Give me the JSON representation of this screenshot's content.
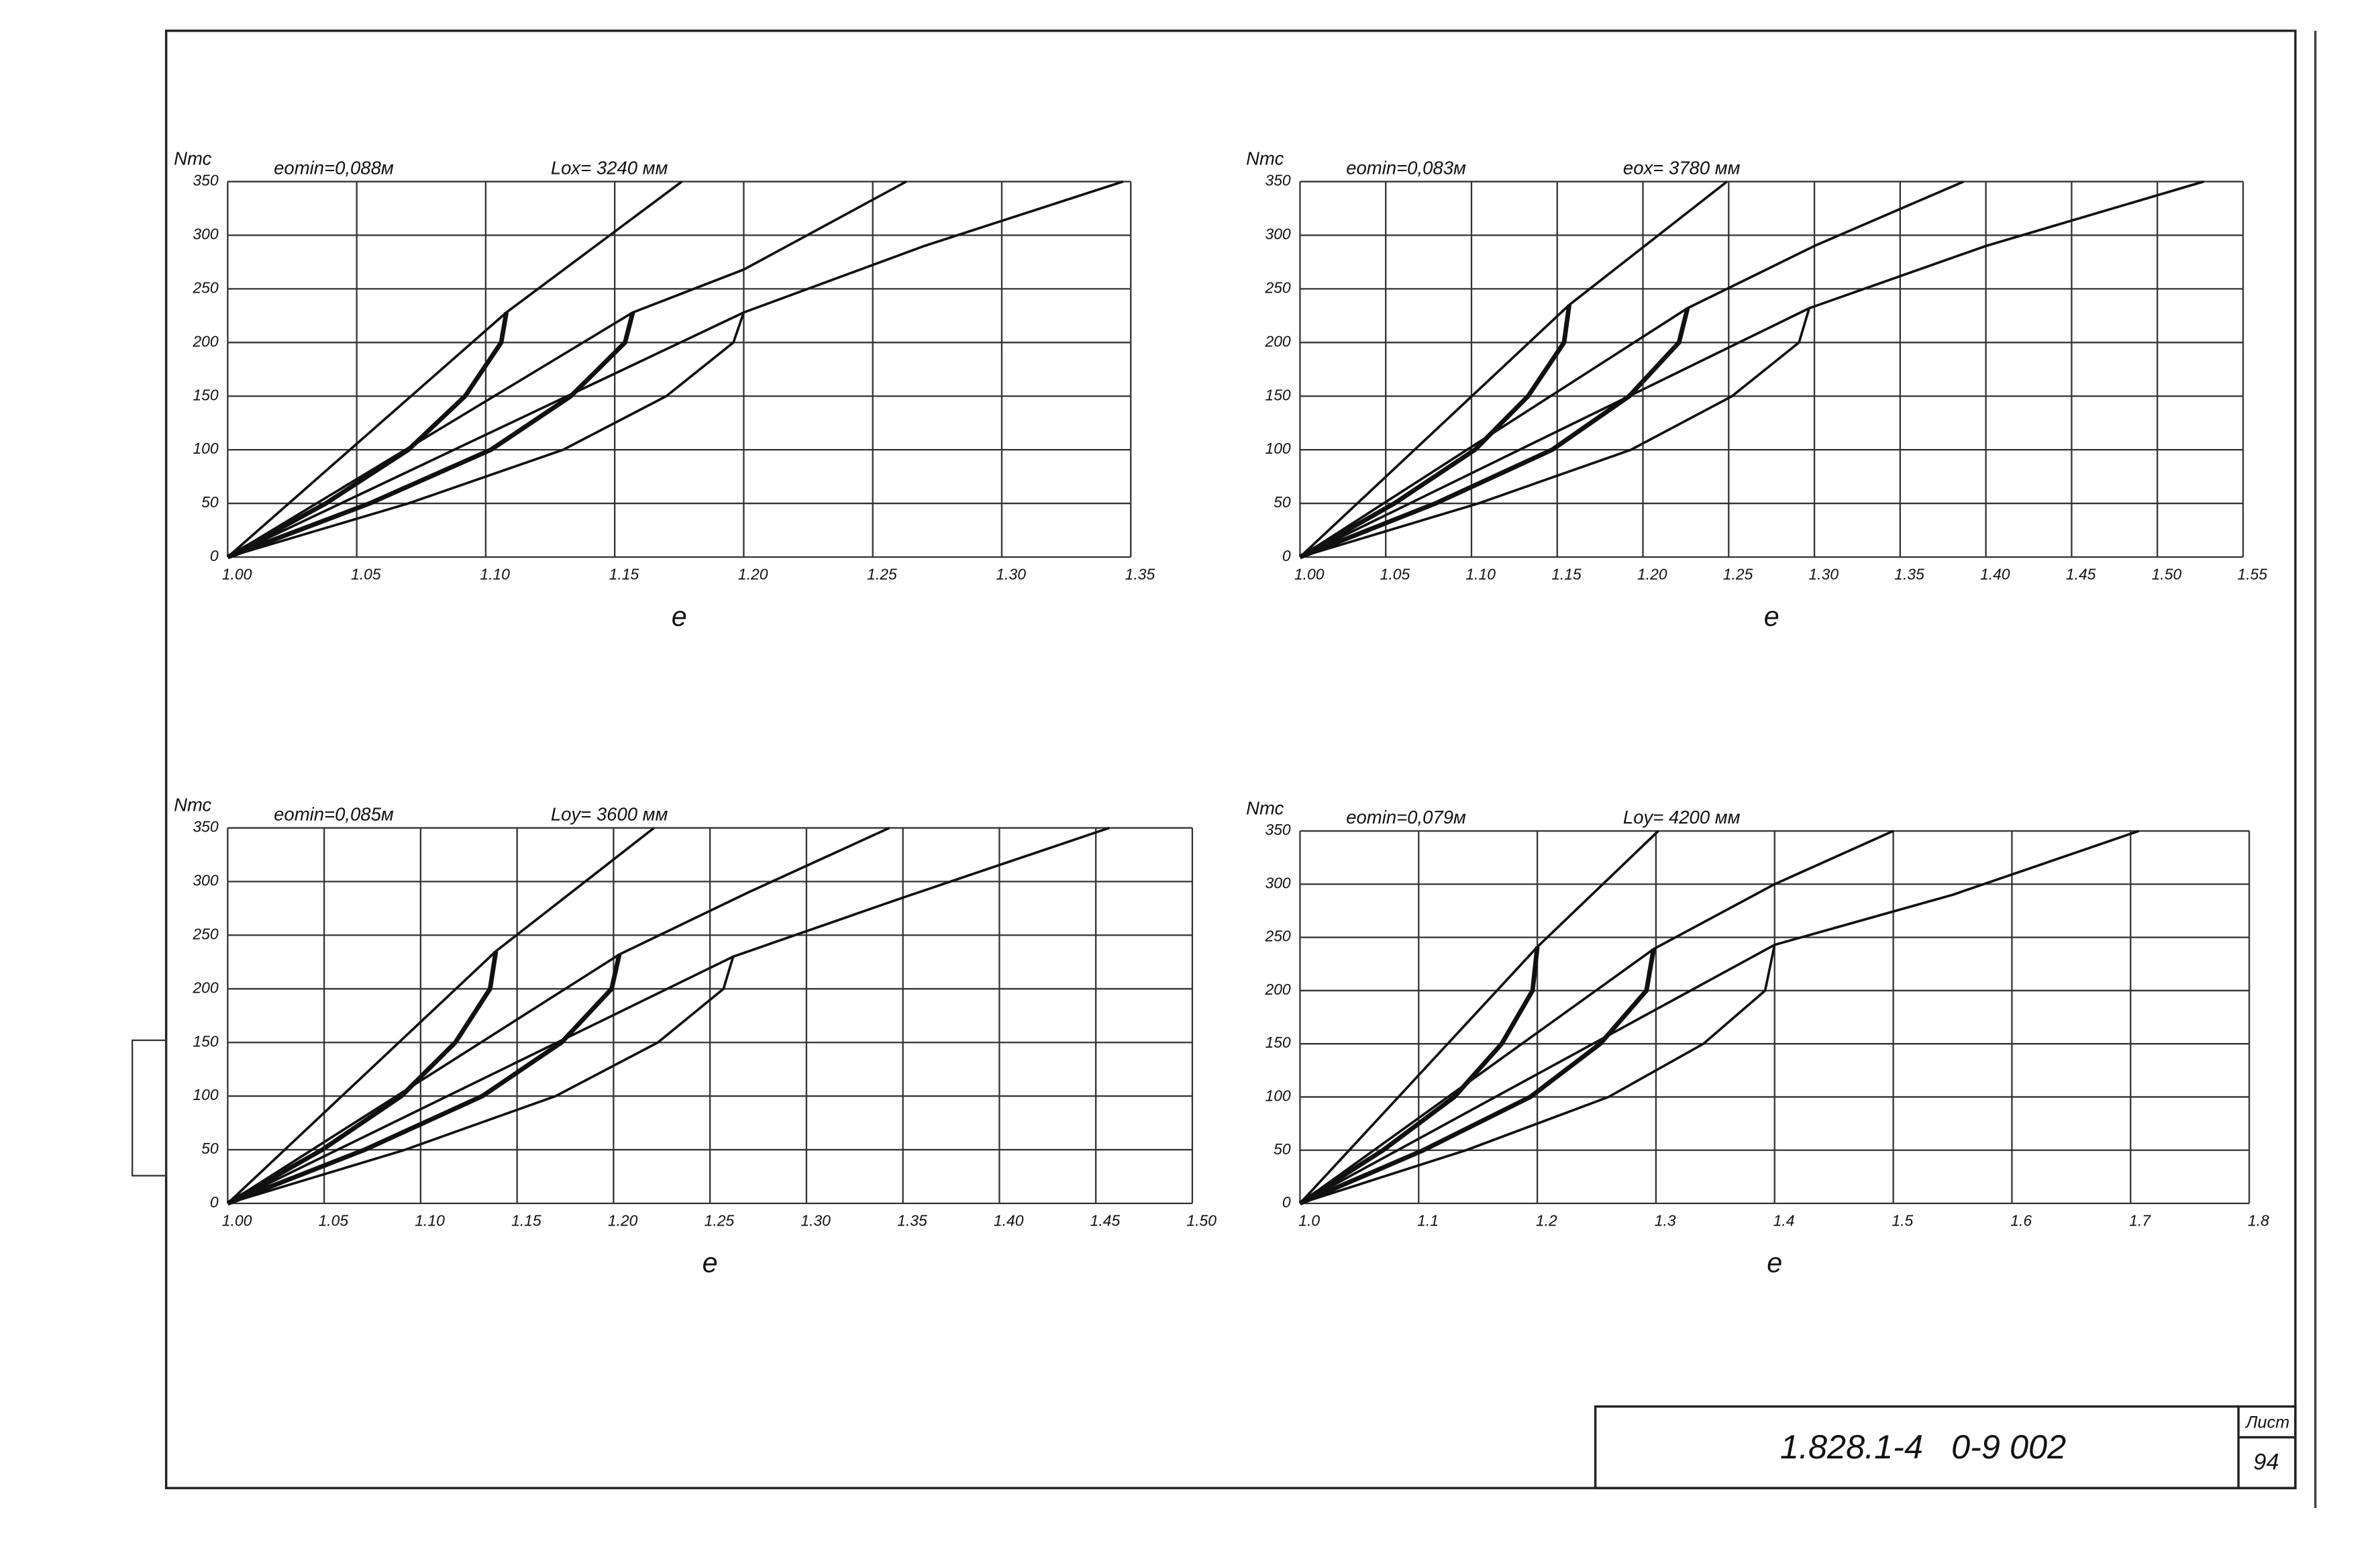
{
  "chart_data": [
    {
      "type": "line",
      "title": "eomin=0,088м",
      "subtitle": "Lox= 3240 мм",
      "y_label": "Nтс",
      "x_label": "e",
      "grid": true,
      "color": "#111",
      "xlim": [
        1,
        1.35
      ],
      "ylim": [
        0,
        350
      ],
      "xticks": [
        {
          "value": 1,
          "label": "1.00"
        },
        1.05,
        {
          "value": 1.1,
          "label": "1.10"
        },
        1.15,
        {
          "value": 1.2,
          "label": "1.20"
        },
        1.25,
        {
          "value": 1.3,
          "label": "1.30"
        },
        1.35
      ],
      "yticks": [
        0,
        50,
        100,
        150,
        200,
        250,
        300,
        350
      ],
      "series": [
        {
          "x": [
            1,
            1.108,
            1.176
          ],
          "values": [
            0,
            228,
            350
          ],
          "width": 1.6
        },
        {
          "x": [
            1,
            1.157,
            1.2,
            1.263
          ],
          "values": [
            0,
            228,
            268,
            350
          ],
          "width": 1.6
        },
        {
          "x": [
            1,
            1.2,
            1.27,
            1.347
          ],
          "values": [
            0,
            228,
            290,
            350
          ],
          "width": 1.6
        },
        {
          "x": [
            1.108,
            1.106,
            1.092,
            1.07,
            1.038,
            1
          ],
          "values": [
            228,
            200,
            150,
            100,
            50,
            0
          ],
          "width": 3
        },
        {
          "x": [
            1.157,
            1.154,
            1.133,
            1.102,
            1.055,
            1
          ],
          "values": [
            228,
            200,
            150,
            100,
            50,
            0
          ],
          "width": 3
        },
        {
          "x": [
            1.2,
            1.196,
            1.17,
            1.13,
            1.07,
            1
          ],
          "values": [
            228,
            200,
            150,
            100,
            50,
            0
          ],
          "width": 1.6
        }
      ]
    },
    {
      "type": "line",
      "title": "eomin=0,083м",
      "subtitle": "eox= 3780 мм",
      "y_label": "Nтс",
      "x_label": "e",
      "grid": true,
      "color": "#111",
      "xlim": [
        1,
        1.55
      ],
      "ylim": [
        0,
        350
      ],
      "xticks": [
        {
          "value": 1,
          "label": "1.00"
        },
        1.05,
        {
          "value": 1.1,
          "label": "1.10"
        },
        1.15,
        {
          "value": 1.2,
          "label": "1.20"
        },
        1.25,
        {
          "value": 1.3,
          "label": "1.30"
        },
        1.35,
        {
          "value": 1.4,
          "label": "1.40"
        },
        1.45,
        {
          "value": 1.5,
          "label": "1.50"
        },
        1.55
      ],
      "yticks": [
        0,
        50,
        100,
        150,
        200,
        250,
        300,
        350
      ],
      "series": [
        {
          "x": [
            1,
            1.157,
            1.249
          ],
          "values": [
            0,
            235,
            350
          ],
          "width": 1.6
        },
        {
          "x": [
            1,
            1.226,
            1.3,
            1.387
          ],
          "values": [
            0,
            232,
            290,
            350
          ],
          "width": 1.6
        },
        {
          "x": [
            1,
            1.297,
            1.4,
            1.527
          ],
          "values": [
            0,
            232,
            290,
            350
          ],
          "width": 1.6
        },
        {
          "x": [
            1.157,
            1.154,
            1.133,
            1.102,
            1.055,
            1
          ],
          "values": [
            235,
            200,
            150,
            100,
            50,
            0
          ],
          "width": 3
        },
        {
          "x": [
            1.226,
            1.221,
            1.192,
            1.147,
            1.079,
            1
          ],
          "values": [
            232,
            200,
            150,
            100,
            50,
            0
          ],
          "width": 3
        },
        {
          "x": [
            1.297,
            1.291,
            1.252,
            1.193,
            1.104,
            1
          ],
          "values": [
            232,
            200,
            150,
            100,
            50,
            0
          ],
          "width": 1.6
        }
      ]
    },
    {
      "type": "line",
      "title": "eomin=0,085м",
      "subtitle": "Loy= 3600 мм",
      "y_label": "Nтс",
      "x_label": "e",
      "grid": true,
      "color": "#111",
      "xlim": [
        1,
        1.5
      ],
      "ylim": [
        0,
        350
      ],
      "xticks": [
        {
          "value": 1,
          "label": "1.00"
        },
        1.05,
        {
          "value": 1.1,
          "label": "1.10"
        },
        1.15,
        {
          "value": 1.2,
          "label": "1.20"
        },
        1.25,
        {
          "value": 1.3,
          "label": "1.30"
        },
        1.35,
        {
          "value": 1.4,
          "label": "1.40"
        },
        1.45,
        {
          "value": 1.5,
          "label": "1.50"
        }
      ],
      "yticks": [
        0,
        50,
        100,
        150,
        200,
        250,
        300,
        350
      ],
      "series": [
        {
          "x": [
            1,
            1.139,
            1.221
          ],
          "values": [
            0,
            235,
            350
          ],
          "width": 1.6
        },
        {
          "x": [
            1,
            1.203,
            1.27,
            1.343
          ],
          "values": [
            0,
            232,
            290,
            350
          ],
          "width": 1.6
        },
        {
          "x": [
            1,
            1.262,
            1.35,
            1.457
          ],
          "values": [
            0,
            230,
            285,
            350
          ],
          "width": 1.6
        },
        {
          "x": [
            1.139,
            1.136,
            1.118,
            1.09,
            1.049,
            1
          ],
          "values": [
            235,
            200,
            150,
            100,
            50,
            0
          ],
          "width": 3
        },
        {
          "x": [
            1.203,
            1.199,
            1.173,
            1.132,
            1.071,
            1
          ],
          "values": [
            232,
            200,
            150,
            100,
            50,
            0
          ],
          "width": 3
        },
        {
          "x": [
            1.262,
            1.257,
            1.223,
            1.17,
            1.092,
            1
          ],
          "values": [
            230,
            200,
            150,
            100,
            50,
            0
          ],
          "width": 1.6
        }
      ]
    },
    {
      "type": "line",
      "title": "eomin=0,079м",
      "subtitle": "Loy= 4200 мм",
      "y_label": "Nтс",
      "x_label": "e",
      "grid": true,
      "color": "#111",
      "xlim": [
        1,
        1.8
      ],
      "ylim": [
        0,
        350
      ],
      "xticks": [
        {
          "value": 1,
          "label": "1.0"
        },
        1.1,
        1.2,
        1.3,
        1.4,
        1.5,
        1.6,
        1.7,
        1.8
      ],
      "yticks": [
        0,
        50,
        100,
        150,
        200,
        250,
        300,
        350
      ],
      "series": [
        {
          "x": [
            1,
            1.2,
            1.302
          ],
          "values": [
            0,
            241,
            350
          ],
          "width": 1.6
        },
        {
          "x": [
            1,
            1.298,
            1.4,
            1.5
          ],
          "values": [
            0,
            239,
            300,
            350
          ],
          "width": 1.6
        },
        {
          "x": [
            1,
            1.4,
            1.55,
            1.707
          ],
          "values": [
            0,
            243,
            290,
            350
          ],
          "width": 1.6
        },
        {
          "x": [
            1.2,
            1.196,
            1.17,
            1.13,
            1.07,
            1
          ],
          "values": [
            241,
            200,
            150,
            100,
            50,
            0
          ],
          "width": 3
        },
        {
          "x": [
            1.298,
            1.292,
            1.253,
            1.194,
            1.104,
            1
          ],
          "values": [
            239,
            200,
            150,
            100,
            50,
            0
          ],
          "width": 3
        },
        {
          "x": [
            1.4,
            1.392,
            1.34,
            1.26,
            1.14,
            1
          ],
          "values": [
            243,
            200,
            150,
            100,
            50,
            0
          ],
          "width": 1.6
        }
      ]
    }
  ],
  "stamp": {
    "code": "1.828.1-4   0-9 002",
    "sheet_label": "Лист",
    "sheet": "94"
  }
}
